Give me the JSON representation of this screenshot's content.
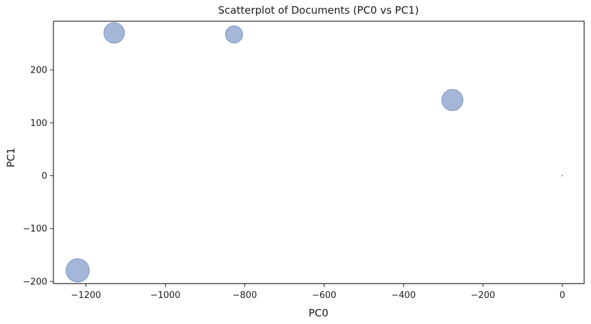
{
  "chart_data": {
    "type": "scatter",
    "title": "Scatterplot of Documents (PC0 vs PC1)",
    "xlabel": "PC0",
    "ylabel": "PC1",
    "xlim": [
      -1282,
      55
    ],
    "ylim": [
      -204,
      292
    ],
    "xticks": [
      -1200,
      -1000,
      -800,
      -600,
      -400,
      -200,
      0
    ],
    "xtick_labels": [
      "−1200",
      "−1000",
      "−800",
      "−600",
      "−400",
      "−200",
      "0"
    ],
    "yticks": [
      -200,
      -100,
      0,
      100,
      200
    ],
    "ytick_labels": [
      "−200",
      "−100",
      "0",
      "100",
      "200"
    ],
    "grid": false,
    "marker_color": "#7f98c8",
    "marker_edge_color": "#5f7db8",
    "points": [
      {
        "x": -1221,
        "y": -179,
        "size": 17
      },
      {
        "x": -1129,
        "y": 270,
        "size": 15
      },
      {
        "x": -827,
        "y": 267,
        "size": 12.5
      },
      {
        "x": -277,
        "y": 143,
        "size": 15.5
      },
      {
        "x": 0,
        "y": 0,
        "size": 0.7
      }
    ]
  }
}
